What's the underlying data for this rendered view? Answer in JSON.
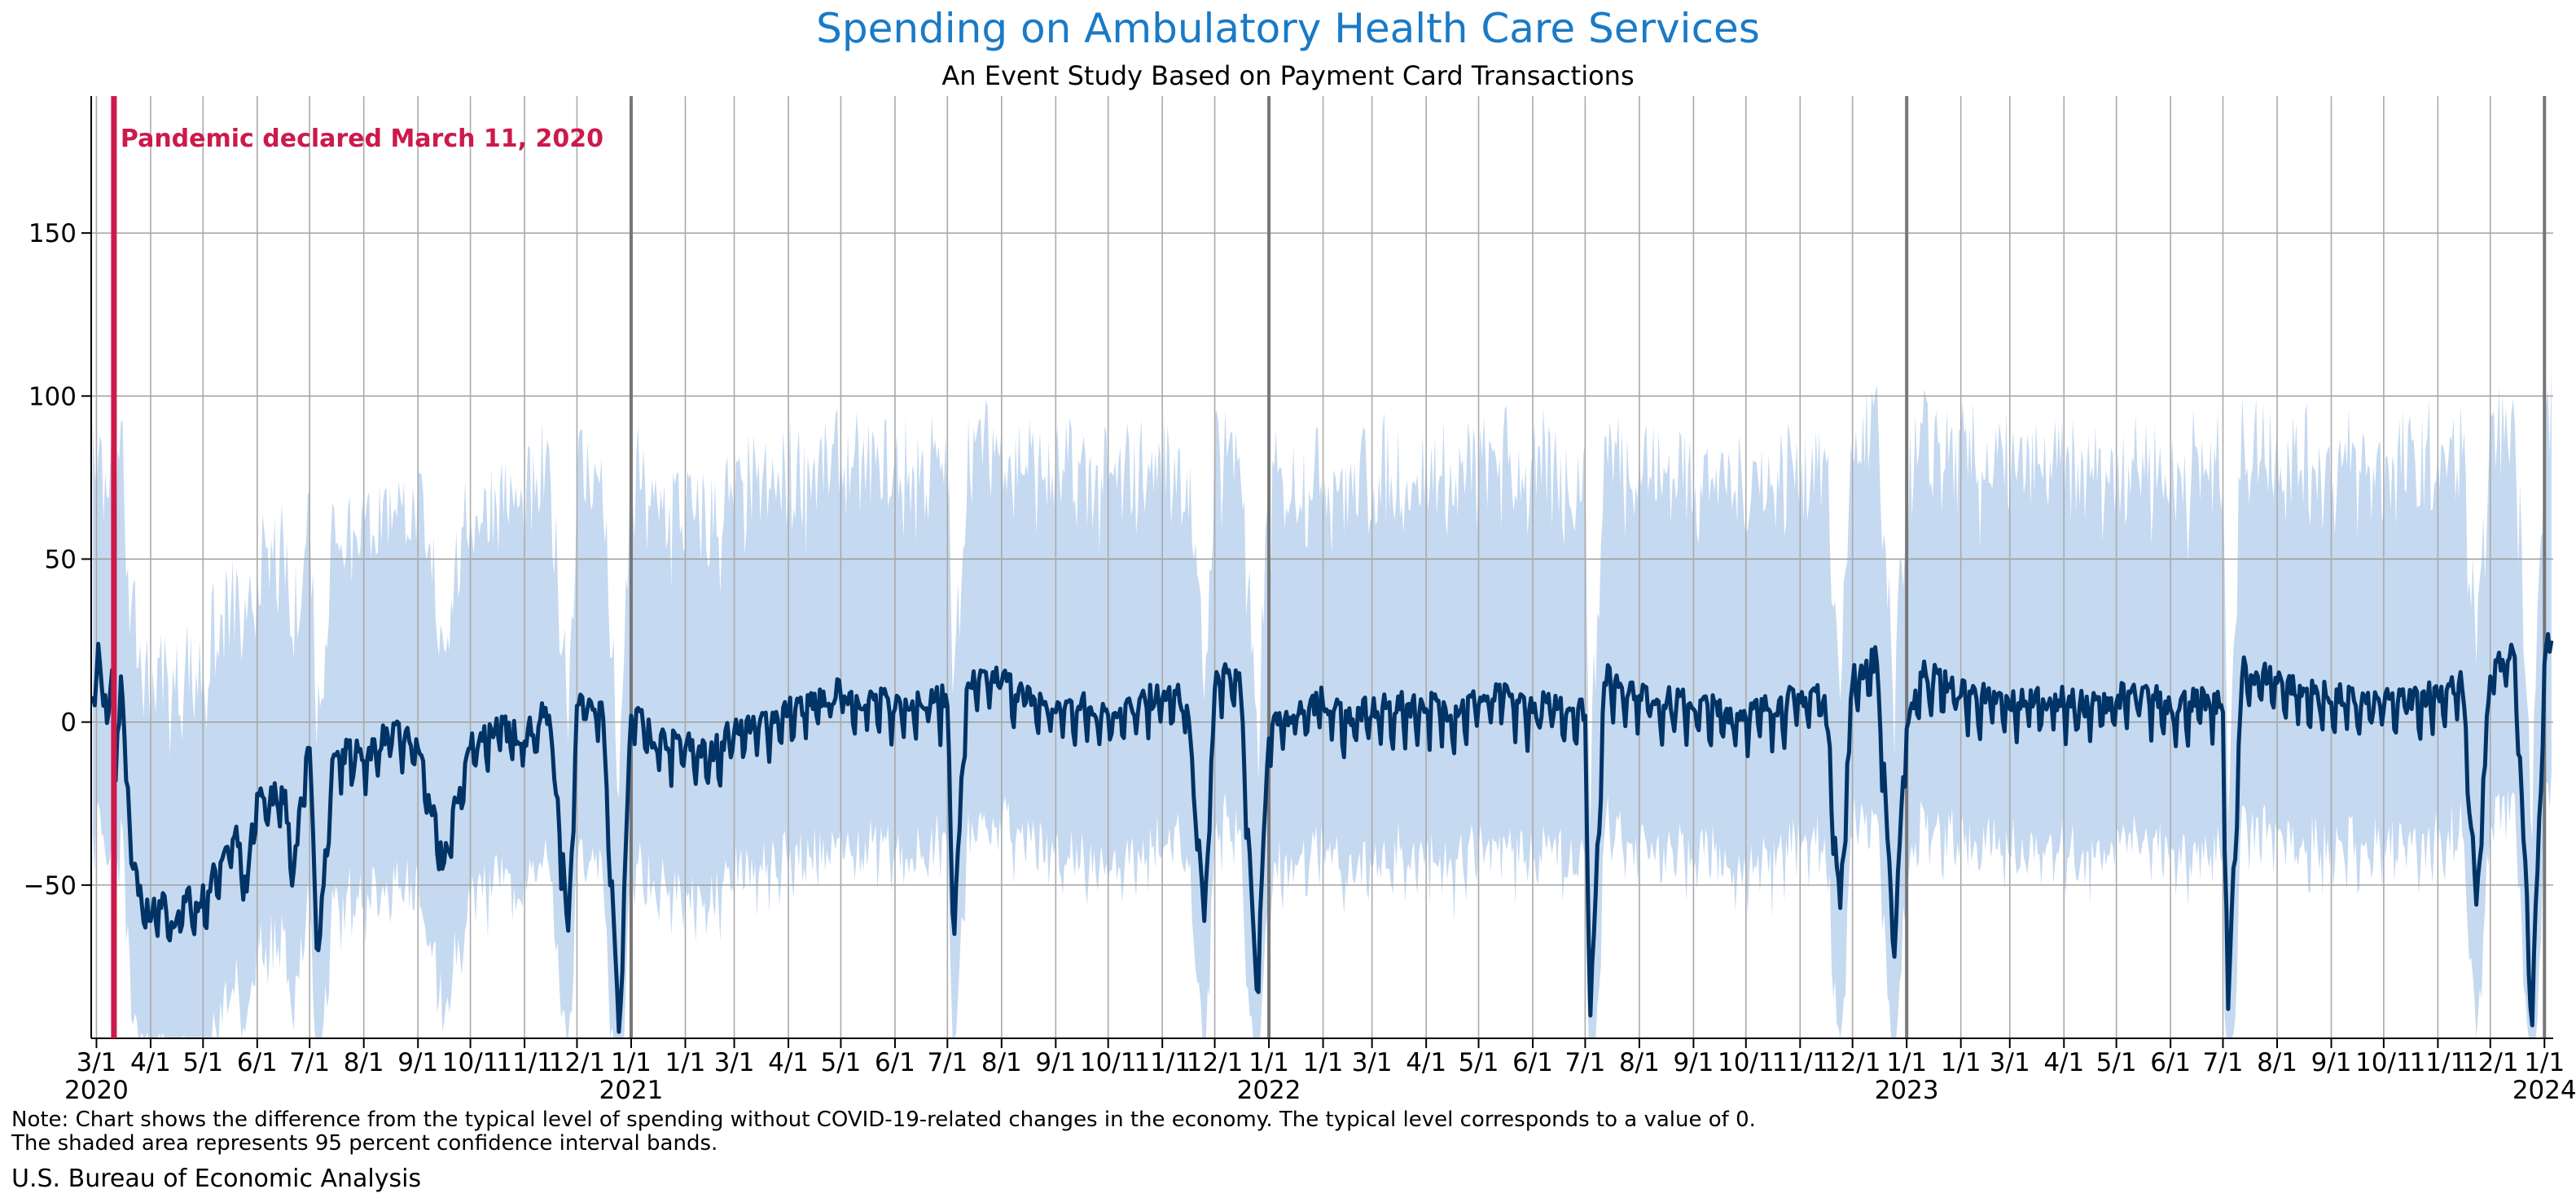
{
  "chart_data": {
    "type": "line",
    "title": "Spending on Ambulatory Health Care Services",
    "subtitle": "An Event Study Based on Payment Card Transactions",
    "xlabel": "",
    "ylabel": "",
    "ylim": [
      -97,
      192
    ],
    "yticks": [
      -50,
      0,
      50,
      100,
      150
    ],
    "x_range": [
      "2020-02-27",
      "2024-01-06"
    ],
    "x_month_labels": [
      "3/1",
      "4/1",
      "5/1",
      "6/1",
      "7/1",
      "8/1",
      "9/1",
      "10/1",
      "11/1",
      "12/1",
      "1/1"
    ],
    "x_year_labels": [
      "2020",
      "2021",
      "2022",
      "2023",
      "2024"
    ],
    "grid": true,
    "annotation": {
      "date": "2020-03-11",
      "label": "Pandemic declared March 11, 2020",
      "color": "#cc1a4a"
    },
    "series": [
      {
        "role": "estimate",
        "color": "#003366",
        "points": [
          [
            "2020-02-28",
            8
          ],
          [
            "2020-03-02",
            24
          ],
          [
            "2020-03-05",
            5
          ],
          [
            "2020-03-08",
            3
          ],
          [
            "2020-03-10",
            16
          ],
          [
            "2020-03-12",
            -18
          ],
          [
            "2020-03-15",
            14
          ],
          [
            "2020-03-18",
            -18
          ],
          [
            "2020-03-22",
            -45
          ],
          [
            "2020-03-27",
            -56
          ],
          [
            "2020-04-01",
            -61
          ],
          [
            "2020-04-07",
            -57
          ],
          [
            "2020-04-14",
            -63
          ],
          [
            "2020-04-21",
            -55
          ],
          [
            "2020-04-28",
            -58
          ],
          [
            "2020-05-05",
            -52
          ],
          [
            "2020-05-12",
            -42
          ],
          [
            "2020-05-19",
            -35
          ],
          [
            "2020-05-26",
            -52
          ],
          [
            "2020-06-01",
            -22
          ],
          [
            "2020-06-08",
            -26
          ],
          [
            "2020-06-15",
            -20
          ],
          [
            "2020-06-22",
            -45
          ],
          [
            "2020-07-01",
            -8
          ],
          [
            "2020-07-06",
            -70
          ],
          [
            "2020-07-15",
            -10
          ],
          [
            "2020-08-01",
            -12
          ],
          [
            "2020-08-15",
            -5
          ],
          [
            "2020-09-01",
            -8
          ],
          [
            "2020-09-15",
            -45
          ],
          [
            "2020-10-01",
            -8
          ],
          [
            "2020-10-15",
            -3
          ],
          [
            "2020-11-01",
            -6
          ],
          [
            "2020-11-15",
            2
          ],
          [
            "2020-11-26",
            -64
          ],
          [
            "2020-12-01",
            5
          ],
          [
            "2020-12-15",
            6
          ],
          [
            "2020-12-25",
            -95
          ],
          [
            "2021-01-01",
            2
          ],
          [
            "2021-01-15",
            -8
          ],
          [
            "2021-02-01",
            -8
          ],
          [
            "2021-02-15",
            -12
          ],
          [
            "2021-03-01",
            -3
          ],
          [
            "2021-03-15",
            -2
          ],
          [
            "2021-04-01",
            2
          ],
          [
            "2021-04-15",
            4
          ],
          [
            "2021-05-01",
            8
          ],
          [
            "2021-05-15",
            5
          ],
          [
            "2021-06-01",
            4
          ],
          [
            "2021-06-15",
            6
          ],
          [
            "2021-07-01",
            5
          ],
          [
            "2021-07-05",
            -65
          ],
          [
            "2021-07-12",
            10
          ],
          [
            "2021-08-01",
            12
          ],
          [
            "2021-08-15",
            6
          ],
          [
            "2021-09-01",
            3
          ],
          [
            "2021-09-15",
            4
          ],
          [
            "2021-10-01",
            2
          ],
          [
            "2021-10-15",
            3
          ],
          [
            "2021-11-01",
            7
          ],
          [
            "2021-11-15",
            5
          ],
          [
            "2021-11-25",
            -61
          ],
          [
            "2021-12-01",
            10
          ],
          [
            "2021-12-15",
            15
          ],
          [
            "2021-12-25",
            -82
          ],
          [
            "2022-01-01",
            -5
          ],
          [
            "2022-01-15",
            2
          ],
          [
            "2022-02-01",
            5
          ],
          [
            "2022-02-15",
            0
          ],
          [
            "2022-03-01",
            2
          ],
          [
            "2022-03-15",
            3
          ],
          [
            "2022-04-01",
            4
          ],
          [
            "2022-04-15",
            2
          ],
          [
            "2022-05-01",
            5
          ],
          [
            "2022-05-15",
            6
          ],
          [
            "2022-06-01",
            3
          ],
          [
            "2022-06-15",
            4
          ],
          [
            "2022-07-01",
            2
          ],
          [
            "2022-07-04",
            -90
          ],
          [
            "2022-07-12",
            12
          ],
          [
            "2022-08-01",
            8
          ],
          [
            "2022-08-15",
            5
          ],
          [
            "2022-09-01",
            4
          ],
          [
            "2022-09-15",
            2
          ],
          [
            "2022-10-01",
            1
          ],
          [
            "2022-10-15",
            3
          ],
          [
            "2022-11-01",
            6
          ],
          [
            "2022-11-15",
            8
          ],
          [
            "2022-11-24",
            -57
          ],
          [
            "2022-12-01",
            12
          ],
          [
            "2022-12-15",
            18
          ],
          [
            "2022-12-25",
            -72
          ],
          [
            "2023-01-01",
            -2
          ],
          [
            "2023-01-10",
            14
          ],
          [
            "2023-02-01",
            8
          ],
          [
            "2023-02-15",
            6
          ],
          [
            "2023-03-01",
            4
          ],
          [
            "2023-03-15",
            6
          ],
          [
            "2023-04-01",
            5
          ],
          [
            "2023-04-15",
            3
          ],
          [
            "2023-05-01",
            6
          ],
          [
            "2023-05-15",
            7
          ],
          [
            "2023-06-01",
            4
          ],
          [
            "2023-06-15",
            5
          ],
          [
            "2023-07-01",
            3
          ],
          [
            "2023-07-04",
            -88
          ],
          [
            "2023-07-12",
            14
          ],
          [
            "2023-08-01",
            12
          ],
          [
            "2023-08-15",
            8
          ],
          [
            "2023-09-01",
            6
          ],
          [
            "2023-09-15",
            5
          ],
          [
            "2023-10-01",
            4
          ],
          [
            "2023-10-15",
            5
          ],
          [
            "2023-11-01",
            8
          ],
          [
            "2023-11-15",
            10
          ],
          [
            "2023-11-23",
            -56
          ],
          [
            "2023-12-01",
            14
          ],
          [
            "2023-12-15",
            20
          ],
          [
            "2023-12-25",
            -93
          ],
          [
            "2024-01-01",
            18
          ],
          [
            "2024-01-05",
            25
          ]
        ]
      }
    ],
    "confidence_band": {
      "color": "#c5d9f0",
      "typical_upper_above_estimate": 70,
      "typical_lower_below_estimate": 45
    }
  },
  "note_line_1": "Note: Chart shows the difference from the typical level of spending without COVID-19-related changes in the economy. The typical level corresponds to a value of 0.",
  "note_line_2": "The shaded area represents 95 percent confidence interval bands.",
  "source": "U.S. Bureau of Economic Analysis"
}
